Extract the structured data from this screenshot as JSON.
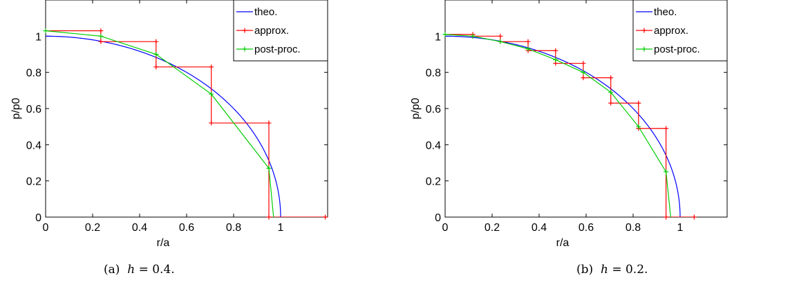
{
  "chart_data": [
    {
      "type": "line",
      "caption_tag": "(a)",
      "caption_var": "h",
      "caption_value": "= 0.4.",
      "xlabel": "r/a",
      "ylabel": "p/p0",
      "xlim": [
        0,
        1.2
      ],
      "ylim": [
        0,
        1.2
      ],
      "xticks": [
        "0",
        "0.2",
        "0.4",
        "0.6",
        "0.8",
        "1"
      ],
      "xtick_values": [
        0,
        0.2,
        0.4,
        0.6,
        0.8,
        1
      ],
      "yticks": [
        "0",
        "0.2",
        "0.4",
        "0.6",
        "0.8",
        "1"
      ],
      "ytick_values": [
        0,
        0.2,
        0.4,
        0.6,
        0.8,
        1
      ],
      "grid": false,
      "legend_position": "top-right",
      "series": [
        {
          "name": "theo.",
          "color": "#0000ff",
          "kind": "curve",
          "x_max": 1.0
        },
        {
          "name": "approx.",
          "color": "#ff0000",
          "kind": "step",
          "x": [
            0,
            0.235,
            0.235,
            0.47,
            0.47,
            0.705,
            0.705,
            0.95,
            0.95,
            1.19
          ],
          "y": [
            1.03,
            1.03,
            0.97,
            0.97,
            0.83,
            0.83,
            0.52,
            0.52,
            0,
            0
          ],
          "markers_x": [
            0.235,
            0.235,
            0.47,
            0.47,
            0.705,
            0.705,
            0.95,
            0.95,
            1.19
          ],
          "markers_y": [
            1.03,
            0.97,
            0.97,
            0.83,
            0.83,
            0.52,
            0.52,
            0,
            0
          ]
        },
        {
          "name": "post-proc.",
          "color": "#00cc00",
          "kind": "line",
          "x": [
            0,
            0.235,
            0.47,
            0.705,
            0.95,
            0.97
          ],
          "y": [
            1.03,
            1.0,
            0.9,
            0.68,
            0.27,
            0
          ],
          "markers_x": [
            0,
            0.235,
            0.47,
            0.705,
            0.95
          ],
          "markers_y": [
            1.03,
            1.0,
            0.9,
            0.68,
            0.27
          ]
        }
      ]
    },
    {
      "type": "line",
      "caption_tag": "(b)",
      "caption_var": "h",
      "caption_value": "= 0.2.",
      "xlabel": "r/a",
      "ylabel": "p/p0",
      "xlim": [
        0,
        1.2
      ],
      "ylim": [
        0,
        1.2
      ],
      "xticks": [
        "0",
        "0.2",
        "0.4",
        "0.6",
        "0.8",
        "1"
      ],
      "xtick_values": [
        0,
        0.2,
        0.4,
        0.6,
        0.8,
        1
      ],
      "yticks": [
        "0",
        "0.2",
        "0.4",
        "0.6",
        "0.8",
        "1"
      ],
      "ytick_values": [
        0,
        0.2,
        0.4,
        0.6,
        0.8,
        1
      ],
      "grid": false,
      "legend_position": "top-right",
      "series": [
        {
          "name": "theo.",
          "color": "#0000ff",
          "kind": "curve",
          "x_max": 1.0
        },
        {
          "name": "approx.",
          "color": "#ff0000",
          "kind": "step",
          "x": [
            0,
            0.118,
            0.118,
            0.235,
            0.235,
            0.353,
            0.353,
            0.47,
            0.47,
            0.588,
            0.588,
            0.705,
            0.705,
            0.823,
            0.823,
            0.94,
            0.94,
            1.06
          ],
          "y": [
            1.01,
            1.01,
            1.0,
            1.0,
            0.97,
            0.97,
            0.92,
            0.92,
            0.85,
            0.85,
            0.77,
            0.77,
            0.63,
            0.63,
            0.49,
            0.49,
            0,
            0
          ],
          "markers_x": [
            0.118,
            0.118,
            0.235,
            0.235,
            0.353,
            0.353,
            0.47,
            0.47,
            0.588,
            0.588,
            0.705,
            0.705,
            0.823,
            0.823,
            0.94,
            0.94,
            1.06
          ],
          "markers_y": [
            1.01,
            1.0,
            1.0,
            0.97,
            0.97,
            0.92,
            0.92,
            0.85,
            0.85,
            0.77,
            0.77,
            0.63,
            0.63,
            0.49,
            0.49,
            0,
            0
          ]
        },
        {
          "name": "post-proc.",
          "color": "#00cc00",
          "kind": "line",
          "x": [
            0,
            0.118,
            0.235,
            0.353,
            0.47,
            0.588,
            0.705,
            0.823,
            0.94,
            0.96
          ],
          "y": [
            1.01,
            1.0,
            0.97,
            0.93,
            0.87,
            0.8,
            0.69,
            0.5,
            0.25,
            0
          ],
          "markers_x": [
            0,
            0.118,
            0.235,
            0.353,
            0.47,
            0.588,
            0.705,
            0.823,
            0.94
          ],
          "markers_y": [
            1.01,
            1.0,
            0.97,
            0.93,
            0.87,
            0.8,
            0.69,
            0.5,
            0.25
          ]
        }
      ]
    }
  ]
}
